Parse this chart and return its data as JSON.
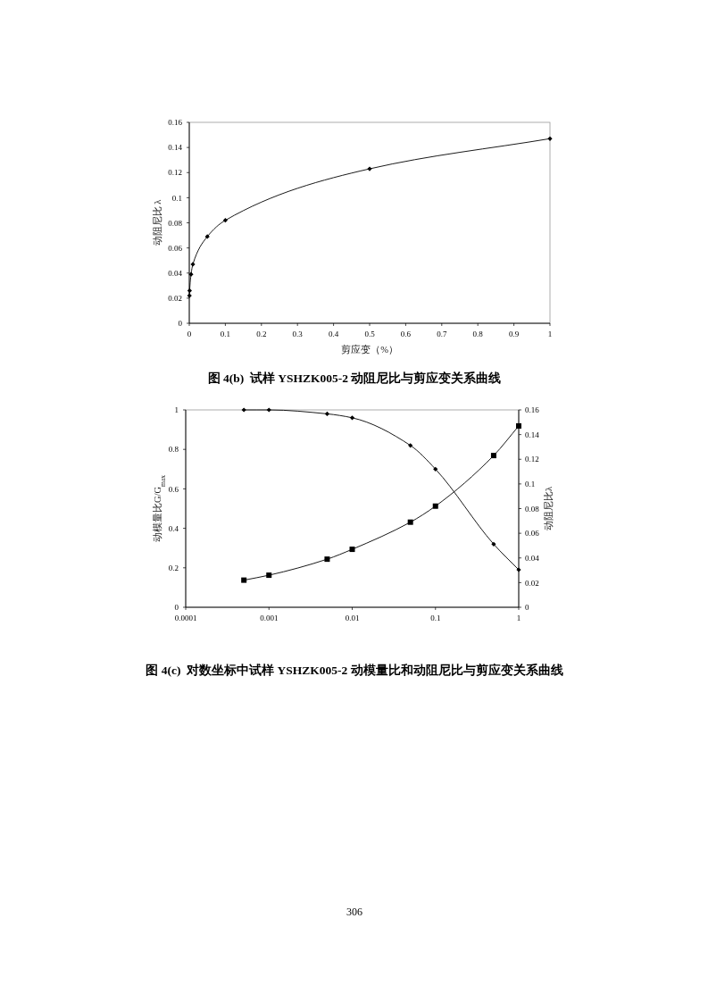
{
  "chart_data": [
    {
      "type": "line",
      "title": "图 4(b)  试样 YSHZK005-2 动阻尼比与剪应变关系曲线",
      "xlabel": "剪应变（%）",
      "ylabel": "动阻尼比 λ",
      "x": [
        0.0005,
        0.001,
        0.005,
        0.01,
        0.05,
        0.1,
        0.5,
        1
      ],
      "series": [
        {
          "color": "#000000",
          "values": [
            0.022,
            0.026,
            0.039,
            0.047,
            0.069,
            0.082,
            0.123,
            0.147
          ]
        }
      ],
      "xlim": [
        0,
        1
      ],
      "xticks": [
        0,
        0.1,
        0.2,
        0.3,
        0.4,
        0.5,
        0.6,
        0.7,
        0.8,
        0.9,
        1
      ],
      "ylim": [
        0,
        0.16
      ],
      "yticks": [
        0,
        0.02,
        0.04,
        0.06,
        0.08,
        0.1,
        0.12,
        0.14,
        0.16
      ],
      "marker": "diamond"
    },
    {
      "type": "line",
      "title": "图 4(c)  对数坐标中试样 YSHZK005-2 动模量比和动阻尼比与剪应变关系曲线",
      "ylabel": "动模量比G/G$_{max}$",
      "y2label": "动阻尼比λ",
      "x": [
        0.0005,
        0.001,
        0.005,
        0.01,
        0.05,
        0.1,
        0.5,
        1
      ],
      "series": [
        {
          "color": "#000000",
          "values": [
            1.0,
            1.0,
            0.98,
            0.96,
            0.82,
            0.7,
            0.32,
            0.19
          ],
          "marker": "diamond"
        },
        {
          "color": "#000000",
          "values": [
            0.022,
            0.026,
            0.039,
            0.047,
            0.069,
            0.082,
            0.123,
            0.147
          ],
          "axis": "y2",
          "marker": "square"
        }
      ],
      "log": "x",
      "xlim": [
        0.0001,
        1
      ],
      "xticks": [
        0.0001,
        0.001,
        0.01,
        0.1,
        1
      ],
      "ylim": [
        0,
        1
      ],
      "yticks": [
        0,
        0.2,
        0.4,
        0.6,
        0.8,
        1
      ],
      "y2lim": [
        0,
        0.16
      ],
      "y2ticks": [
        0,
        0.02,
        0.04,
        0.06,
        0.08,
        0.1,
        0.12,
        0.14,
        0.16
      ],
      "annotations": [
        "306"
      ]
    }
  ]
}
